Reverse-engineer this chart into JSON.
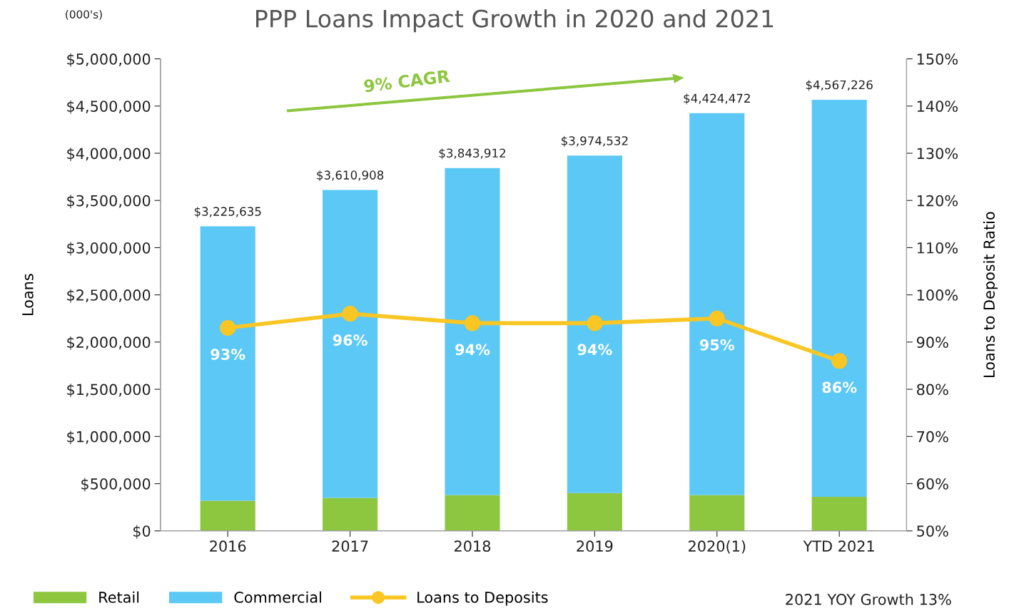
{
  "chart_data": {
    "type": "bar",
    "title": "PPP Loans Impact Growth in 2020 and 2021",
    "ylabel": "Loans",
    "y2label": "Loans to Deposit Ratio",
    "categories": [
      "2016",
      "2017",
      "2018",
      "2019",
      "2020(1)",
      "YTD 2021"
    ],
    "stacked": true,
    "series": [
      {
        "name": "Retail",
        "color": "#8dc63f",
        "values": [
          320000,
          350000,
          380000,
          400000,
          380000,
          360000
        ]
      },
      {
        "name": "Commercial",
        "color": "#5bc8f5",
        "values": [
          2905635,
          3260908,
          3463912,
          3574532,
          4044472,
          4207226
        ]
      },
      {
        "name": "Loans to Deposits",
        "type": "line",
        "axis": "y2",
        "color": "#f9c623",
        "marker": "circle",
        "values": [
          93,
          96,
          94,
          94,
          95,
          86
        ],
        "value_labels": [
          "93%",
          "96%",
          "94%",
          "94%",
          "95%",
          "86%"
        ]
      }
    ],
    "totals": [
      "$3,225,635",
      "$3,610,908",
      "$3,843,912",
      "$3,974,532",
      "$4,424,472",
      "$4,567,226"
    ],
    "ylim": [
      0,
      5000000
    ],
    "yticks": [
      {
        "value": 0,
        "label": "$0"
      },
      {
        "value": 500000,
        "label": "$500,000"
      },
      {
        "value": 1000000,
        "label": "$1,000,000"
      },
      {
        "value": 1500000,
        "label": "$1,500,000"
      },
      {
        "value": 2000000,
        "label": "$2,000,000"
      },
      {
        "value": 2500000,
        "label": "$2,500,000"
      },
      {
        "value": 3000000,
        "label": "$3,000,000"
      },
      {
        "value": 3500000,
        "label": "$3,500,000"
      },
      {
        "value": 4000000,
        "label": "$4,000,000"
      },
      {
        "value": 4500000,
        "label": "$4,500,000"
      },
      {
        "value": 5000000,
        "label": "$5,000,000"
      }
    ],
    "y2lim": [
      50,
      150
    ],
    "y2ticks": [
      {
        "value": 50,
        "label": "50%"
      },
      {
        "value": 60,
        "label": "60%"
      },
      {
        "value": 70,
        "label": "70%"
      },
      {
        "value": 80,
        "label": "80%"
      },
      {
        "value": 90,
        "label": "90%"
      },
      {
        "value": 100,
        "label": "100%"
      },
      {
        "value": 110,
        "label": "110%"
      },
      {
        "value": 120,
        "label": "120%"
      },
      {
        "value": 130,
        "label": "130%"
      },
      {
        "value": 140,
        "label": "140%"
      },
      {
        "value": 150,
        "label": "150%"
      }
    ],
    "annotations": [
      "(000's)",
      "9% CAGR",
      "2021 YOY Growth 13%"
    ],
    "grid": false,
    "legend": "bottom"
  }
}
